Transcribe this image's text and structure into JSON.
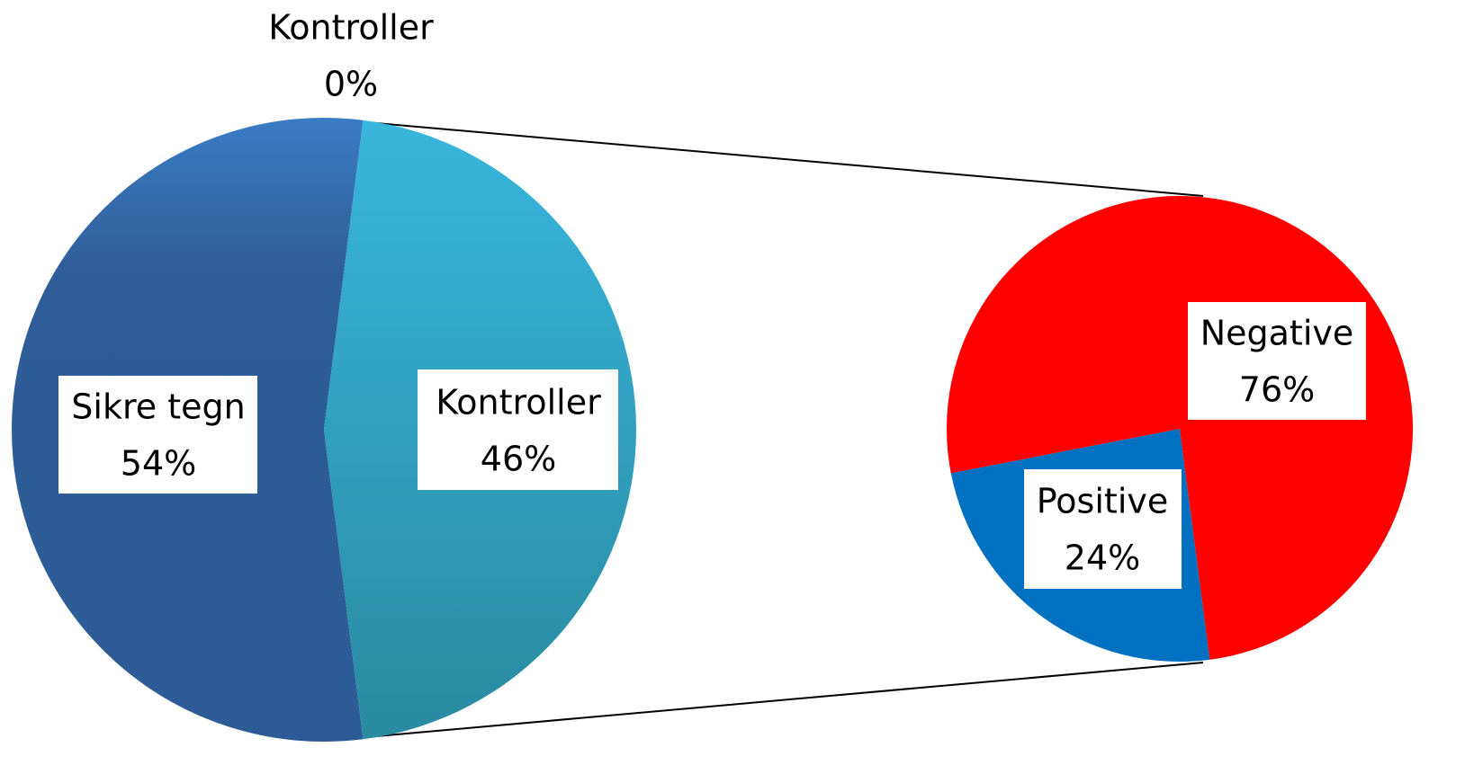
{
  "chart_data": [
    {
      "type": "pie",
      "categories": [
        "Sikre tegn",
        "Kontroller",
        "Kontroller"
      ],
      "values": [
        54,
        0,
        46
      ],
      "value_labels": [
        "54%",
        "0%",
        "46%"
      ],
      "colors": [
        "#2f5d98",
        "#3a7fc6",
        "#35acd0"
      ]
    },
    {
      "type": "pie",
      "categories": [
        "Positive",
        "Negative"
      ],
      "values": [
        24,
        76
      ],
      "value_labels": [
        "24%",
        "76%"
      ],
      "colors": [
        "#0070c0",
        "#ff0000"
      ]
    }
  ]
}
